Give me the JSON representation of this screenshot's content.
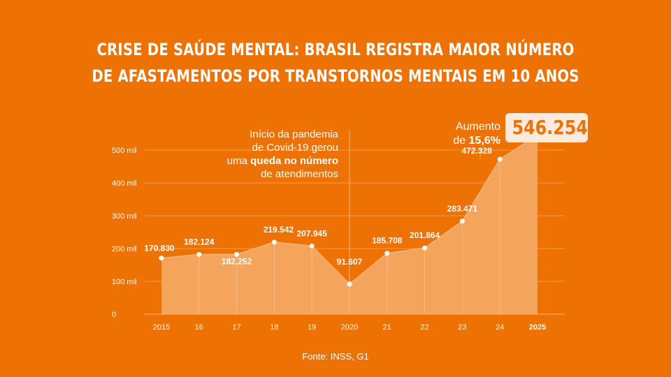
{
  "title": {
    "line1": "CRISE DE SAÚDE MENTAL: BRASIL REGISTRA MAIOR NÚMERO",
    "line2": "DE AFASTAMENTOS POR TRANSTORNOS MENTAIS EM 10 ANOS"
  },
  "annotation_pandemic": {
    "line1": "Início da pandemia",
    "line2": "de Covid-19 gerou",
    "line3_pre": "uma ",
    "line3_bold": "queda no número",
    "line4": "de atendimentos"
  },
  "annotation_increase": {
    "line1": "Aumento",
    "line2_pre": "de ",
    "line2_bold": "15,6%",
    "highlight_value": "546.254"
  },
  "source": "Fonte: INSS, G1",
  "colors": {
    "background": "#EE7203",
    "area_fill": "#F5A45C",
    "highlight_bg": "#FCEBDD",
    "text": "#FFFFFF"
  },
  "chart_data": {
    "type": "area",
    "title": "CRISE DE SAÚDE MENTAL: BRASIL REGISTRA MAIOR NÚMERO DE AFASTAMENTOS POR TRANSTORNOS MENTAIS EM 10 ANOS",
    "x": [
      "2015",
      "16",
      "17",
      "18",
      "19",
      "2020",
      "21",
      "22",
      "23",
      "24",
      "2025"
    ],
    "values": [
      170830,
      182124,
      182252,
      219542,
      207945,
      91607,
      185708,
      201864,
      283471,
      472328,
      546254
    ],
    "data_labels": [
      "170.830",
      "182.124",
      "182.252",
      "219.542",
      "207.945",
      "91.607",
      "185.708",
      "201.864",
      "283.471",
      "472.328",
      ""
    ],
    "bold_x_labels": [
      "2025"
    ],
    "y_ticks": [
      0,
      100000,
      200000,
      300000,
      400000,
      500000
    ],
    "y_tick_labels": [
      "0",
      "100 mil",
      "200 mil",
      "300 mil",
      "400 mil",
      "500 mil"
    ],
    "ylim": [
      0,
      500000
    ],
    "grid": true,
    "annotation_vline_x": "2020",
    "xlabel": "",
    "ylabel": ""
  }
}
